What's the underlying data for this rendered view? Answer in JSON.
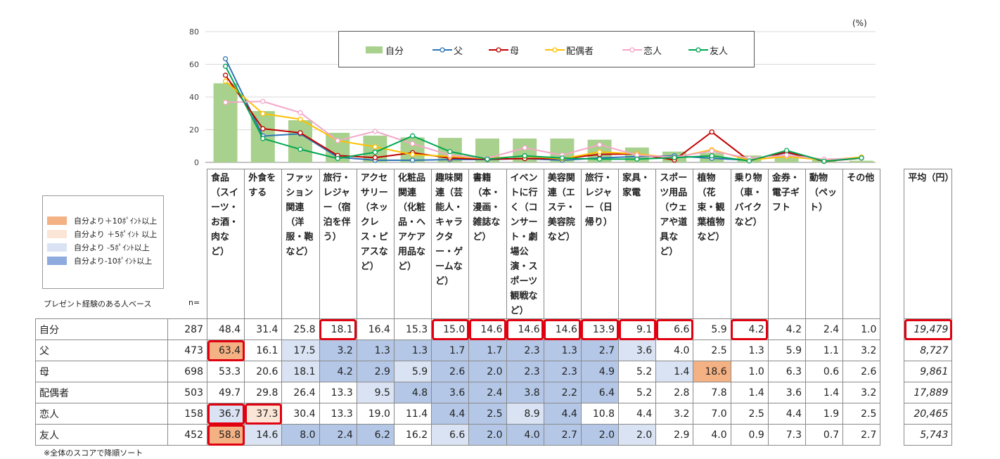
{
  "unit_label": "(%)",
  "legend": [
    {
      "label": "自分",
      "color": "#a9d18e",
      "kind": "bar"
    },
    {
      "label": "父",
      "color": "#2e75b6",
      "kind": "line"
    },
    {
      "label": "母",
      "color": "#c00000",
      "kind": "line"
    },
    {
      "label": "配偶者",
      "color": "#ffc000",
      "kind": "line"
    },
    {
      "label": "恋人",
      "color": "#f4a6c8",
      "kind": "line"
    },
    {
      "label": "友人",
      "color": "#00a651",
      "kind": "line"
    }
  ],
  "chart_data": {
    "type": "bar",
    "ylim": [
      0,
      80
    ],
    "yticks": [
      0,
      20,
      40,
      60,
      80
    ],
    "grid": true,
    "legend_position": "top-right",
    "categories": [
      "食品（スイーツ・お酒・肉など）",
      "外食をする",
      "ファッション関連（洋服・鞄など）",
      "旅行・レジャー（宿泊を伴う）",
      "アクセサリー（ネックレス・ピアスなど）",
      "化粧品関連（化粧品・ヘアケア用品など）",
      "趣味関連（芸能人・キャラクター・ゲームなど）",
      "書籍（本・漫画・雑誌など）",
      "イベントに行く（コンサート・劇場公演・スポーツ観戦など）",
      "美容関連（エステ・美容院など）",
      "旅行・レジャー（日帰り）",
      "家具・家電",
      "スポーツ用品（ウェアや道具など）",
      "植物（花束・観葉植物など）",
      "乗り物（車・バイクなど）",
      "金券・電子ギフト",
      "動物（ペット）",
      "その他"
    ],
    "series": [
      {
        "name": "自分",
        "values": [
          48.4,
          31.4,
          25.8,
          18.1,
          16.4,
          15.3,
          15.0,
          14.6,
          14.6,
          14.6,
          13.9,
          9.1,
          6.6,
          5.9,
          4.2,
          4.2,
          2.4,
          1.0
        ]
      },
      {
        "name": "父",
        "values": [
          63.4,
          16.1,
          17.5,
          3.2,
          1.3,
          1.3,
          1.7,
          1.7,
          2.3,
          1.3,
          2.7,
          3.6,
          4.0,
          2.5,
          1.3,
          5.9,
          1.1,
          3.2
        ]
      },
      {
        "name": "母",
        "values": [
          53.3,
          20.6,
          18.1,
          4.2,
          2.9,
          5.9,
          2.6,
          2.0,
          2.3,
          2.3,
          4.9,
          5.2,
          1.4,
          18.6,
          1.0,
          6.3,
          0.6,
          2.6
        ]
      },
      {
        "name": "配偶者",
        "values": [
          49.7,
          29.8,
          26.4,
          13.3,
          9.5,
          4.8,
          3.6,
          2.4,
          3.8,
          2.2,
          6.4,
          5.2,
          2.8,
          7.8,
          1.4,
          3.6,
          1.4,
          3.2
        ]
      },
      {
        "name": "恋人",
        "values": [
          36.7,
          37.3,
          30.4,
          13.3,
          19.0,
          11.4,
          4.4,
          2.5,
          8.9,
          4.4,
          10.8,
          4.4,
          3.2,
          7.0,
          2.5,
          4.4,
          1.9,
          2.5
        ]
      },
      {
        "name": "友人",
        "values": [
          58.8,
          14.6,
          8.0,
          2.4,
          6.2,
          16.2,
          6.6,
          2.0,
          4.0,
          2.7,
          2.0,
          2.0,
          2.9,
          4.0,
          0.9,
          7.3,
          0.7,
          2.7
        ]
      }
    ]
  },
  "table": {
    "base_label": "プレゼント経験のある人ベース",
    "n_label": "n=",
    "headers": [
      "食品（スイーツ・お酒・肉など）",
      "外食をする",
      "ファッション関連（洋服・鞄など）",
      "旅行・レジャー（宿泊を伴う）",
      "アクセサリー（ネックレス・ピアスなど）",
      "化粧品関連（化粧品・ヘアケア用品など）",
      "趣味関連（芸能人・キャラクター・ゲームなど）",
      "書籍（本・漫画・雑誌など）",
      "イベントに行く（コンサート・劇場公演・スポーツ観戦など）",
      "美容関連（エステ・美容院など）",
      "旅行・レジャー（日帰り）",
      "家具・家電",
      "スポーツ用品（ウェアや道具など）",
      "植物（花束・観葉植物など）",
      "乗り物（車・バイクなど）",
      "金券・電子ギフト",
      "動物（ペット）",
      "その他"
    ],
    "avg_header": "平均（円）",
    "rows": [
      {
        "label": "自分",
        "n": "287",
        "vals": [
          "48.4",
          "31.4",
          "25.8",
          "18.1",
          "16.4",
          "15.3",
          "15.0",
          "14.6",
          "14.6",
          "14.6",
          "13.9",
          "9.1",
          "6.6",
          "5.9",
          "4.2",
          "4.2",
          "2.4",
          "1.0"
        ],
        "avg": "19,479"
      },
      {
        "label": "父",
        "n": "473",
        "vals": [
          "63.4",
          "16.1",
          "17.5",
          "3.2",
          "1.3",
          "1.3",
          "1.7",
          "1.7",
          "2.3",
          "1.3",
          "2.7",
          "3.6",
          "4.0",
          "2.5",
          "1.3",
          "5.9",
          "1.1",
          "3.2"
        ],
        "avg": "8,727"
      },
      {
        "label": "母",
        "n": "698",
        "vals": [
          "53.3",
          "20.6",
          "18.1",
          "4.2",
          "2.9",
          "5.9",
          "2.6",
          "2.0",
          "2.3",
          "2.3",
          "4.9",
          "5.2",
          "1.4",
          "18.6",
          "1.0",
          "6.3",
          "0.6",
          "2.6"
        ],
        "avg": "9,861"
      },
      {
        "label": "配偶者",
        "n": "503",
        "vals": [
          "49.7",
          "29.8",
          "26.4",
          "13.3",
          "9.5",
          "4.8",
          "3.6",
          "2.4",
          "3.8",
          "2.2",
          "6.4",
          "5.2",
          "2.8",
          "7.8",
          "1.4",
          "3.6",
          "1.4",
          "3.2"
        ],
        "avg": "17,889"
      },
      {
        "label": "恋人",
        "n": "158",
        "vals": [
          "36.7",
          "37.3",
          "30.4",
          "13.3",
          "19.0",
          "11.4",
          "4.4",
          "2.5",
          "8.9",
          "4.4",
          "10.8",
          "4.4",
          "3.2",
          "7.0",
          "2.5",
          "4.4",
          "1.9",
          "2.5"
        ],
        "avg": "20,465"
      },
      {
        "label": "友人",
        "n": "452",
        "vals": [
          "58.8",
          "14.6",
          "8.0",
          "2.4",
          "6.2",
          "16.2",
          "6.6",
          "2.0",
          "4.0",
          "2.7",
          "2.0",
          "2.0",
          "2.9",
          "4.0",
          "0.9",
          "7.3",
          "0.7",
          "2.7"
        ],
        "avg": "5,743"
      }
    ],
    "shading": [
      [
        "",
        "",
        "",
        "",
        "",
        "",
        "",
        "",
        "",
        "",
        "",
        "",
        "",
        "",
        "",
        "",
        "",
        ""
      ],
      [
        "o+10",
        "w",
        "l-5",
        "d-10",
        "d-10",
        "d-10",
        "d-10",
        "d-10",
        "d-10",
        "d-10",
        "d-10",
        "l-5",
        "",
        "",
        "",
        "",
        "",
        ""
      ],
      [
        "",
        "",
        "l-5",
        "d-10",
        "d-10",
        "l-5",
        "d-10",
        "d-10",
        "d-10",
        "d-10",
        "d-10",
        "",
        "l-5",
        "o+10",
        "",
        "",
        "",
        ""
      ],
      [
        "",
        "",
        "",
        "",
        "l-5",
        "d-10",
        "d-10",
        "d-10",
        "d-10",
        "d-10",
        "d-10",
        "",
        "",
        "",
        "",
        "",
        "",
        ""
      ],
      [
        "l-5",
        "p+5",
        "",
        "",
        "",
        "",
        "d-10",
        "d-10",
        "l-5",
        "d-10",
        "",
        "",
        "",
        "",
        "",
        "",
        "",
        ""
      ],
      [
        "o+10",
        "l-5",
        "d-10",
        "d-10",
        "d-10",
        "",
        "l-5",
        "d-10",
        "d-10",
        "d-10",
        "d-10",
        "l-5",
        "",
        "",
        "",
        "",
        "",
        ""
      ]
    ],
    "highlights": [
      "0-3",
      "0-6",
      "0-7",
      "0-8",
      "0-9",
      "0-10",
      "0-11",
      "0-12",
      "0-14",
      "0-avg",
      "1-0",
      "4-0",
      "4-1",
      "5-0"
    ]
  },
  "key_legend": [
    {
      "label": "自分より＋10ﾎﾟｲﾝﾄ以上",
      "color": "#f4b183"
    },
    {
      "label": "自分より ＋5ﾎﾟｲﾝﾄ 以上",
      "color": "#fbe5d6"
    },
    {
      "label": "自分より -5ﾎﾟｲﾝﾄ以上",
      "color": "#dae3f3"
    },
    {
      "label": "自分より-10ﾎﾟｲﾝﾄ以上",
      "color": "#8faadc"
    }
  ],
  "shade_colors": {
    "o+10": "#f4b183",
    "p+5": "#fbe5d6",
    "l-5": "#dae3f3",
    "d-10": "#b4c7e7",
    "w": "#ffffff"
  },
  "footnote": "※全体のスコアで降順ソート"
}
